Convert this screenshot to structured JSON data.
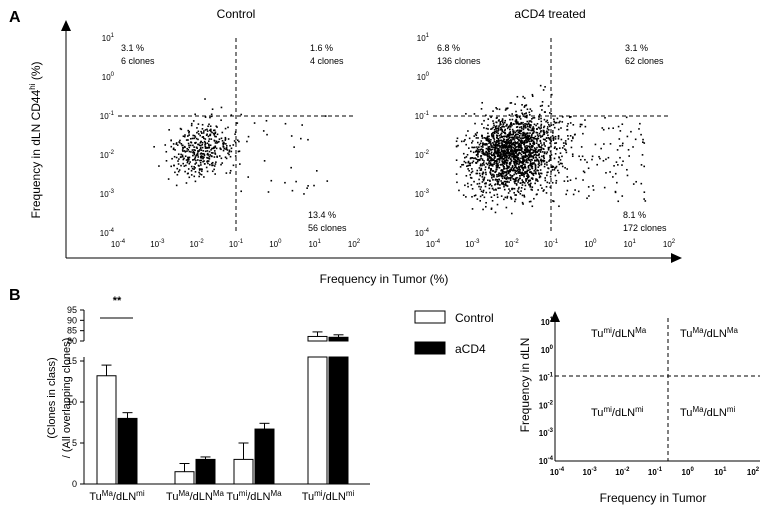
{
  "panel_a": {
    "letter": "A",
    "ylabel_main": "Frequency in dLN  CD44",
    "ylabel_sup": "hi",
    "ylabel_end": " (%)",
    "xlabel": "Frequency in Tumor (%)"
  },
  "panel_b": {
    "letter": "B"
  },
  "chart_data": [
    {
      "id": "control-scatter",
      "type": "scatter",
      "title": "Control",
      "x_scale": "log10",
      "y_scale": "log10",
      "xlim_exp": [
        -4,
        2
      ],
      "ylim_exp": [
        -4,
        1
      ],
      "x_tick_exps": [
        "-4",
        "-3",
        "-2",
        "-1",
        "0",
        "1",
        "2"
      ],
      "y_tick_exps": [
        "1",
        "0",
        "-1",
        "-2",
        "-3",
        "-4"
      ],
      "threshold": {
        "x": 0.1,
        "y": 0.1
      },
      "point_count": 420,
      "quadrants": {
        "top_left": {
          "pct": "3.1 %",
          "clones": "6 clones"
        },
        "top_right": {
          "pct": "1.6 %",
          "clones": "4 clones"
        },
        "bottom_right": {
          "pct": "13.4 %",
          "clones": "56 clones"
        }
      }
    },
    {
      "id": "acd4-scatter",
      "type": "scatter",
      "title": "aCD4 treated",
      "x_scale": "log10",
      "y_scale": "log10",
      "xlim_exp": [
        -4,
        2
      ],
      "ylim_exp": [
        -4,
        1
      ],
      "x_tick_exps": [
        "-4",
        "-3",
        "-2",
        "-1",
        "0",
        "1",
        "2"
      ],
      "y_tick_exps": [
        "1",
        "0",
        "-1",
        "-2",
        "-3",
        "-4"
      ],
      "threshold": {
        "x": 0.1,
        "y": 0.1
      },
      "point_count": 2000,
      "quadrants": {
        "top_left": {
          "pct": "6.8 %",
          "clones": "136 clones"
        },
        "top_right": {
          "pct": "3.1 %",
          "clones": "62 clones"
        },
        "bottom_right": {
          "pct": "8.1 %",
          "clones": "172 clones"
        }
      }
    },
    {
      "id": "class-bar",
      "type": "bar",
      "ylabel_line1": "(Clones in class)",
      "ylabel_line2": "/ (All overlapping clones)",
      "y_axis": "broken",
      "y_ticks_lower": [
        "0",
        "5",
        "10",
        "15"
      ],
      "y_ticks_upper": [
        "80",
        "85",
        "90",
        "95"
      ],
      "categories": [
        {
          "base": "Tu",
          "sup1": "Ma",
          "mid": "/dLN",
          "sup2": "mi"
        },
        {
          "base": "Tu",
          "sup1": "Ma",
          "mid": "/dLN",
          "sup2": "Ma"
        },
        {
          "base": "Tu",
          "sup1": "mi",
          "mid": "/dLN",
          "sup2": "Ma"
        },
        {
          "base": "Tu",
          "sup1": "mi",
          "mid": "/dLN",
          "sup2": "mi"
        }
      ],
      "series": [
        {
          "name": "Control",
          "fill": "#ffffff",
          "values": [
            13.2,
            1.5,
            3.0,
            82.2
          ],
          "errors": [
            1.3,
            1.0,
            2.0,
            2.2
          ]
        },
        {
          "name": "aCD4",
          "fill": "#000000",
          "values": [
            8.0,
            3.0,
            6.7,
            81.8
          ],
          "errors": [
            0.7,
            0.3,
            0.7,
            1.2
          ]
        }
      ],
      "significance": {
        "label": "**",
        "category_index": 0
      }
    },
    {
      "id": "schematic",
      "type": "diagram",
      "ylabel": "Frequency in dLN",
      "xlabel": "Frequency in Tumor",
      "x_tick_exps": [
        "-4",
        "-3",
        "-2",
        "-1",
        "0",
        "1",
        "2"
      ],
      "y_tick_exps": [
        "1",
        "0",
        "-1",
        "-2",
        "-3",
        "-4"
      ],
      "quadrants": {
        "top_left": {
          "base": "Tu",
          "sup1": "mi",
          "mid": "/dLN",
          "sup2": "Ma"
        },
        "top_right": {
          "base": "Tu",
          "sup1": "Ma",
          "mid": "/dLN",
          "sup2": "Ma"
        },
        "bottom_left": {
          "base": "Tu",
          "sup1": "mi",
          "mid": "/dLN",
          "sup2": "mi"
        },
        "bottom_right": {
          "base": "Tu",
          "sup1": "Ma",
          "mid": "/dLN",
          "sup2": "mi"
        }
      }
    }
  ]
}
